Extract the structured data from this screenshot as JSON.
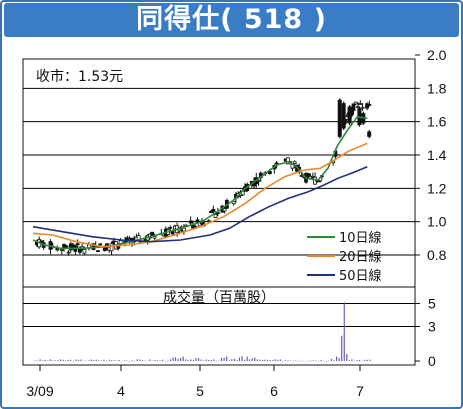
{
  "header": {
    "title": "同得仕( 518 )"
  },
  "price_panel": {
    "close_label": "收市：1.53元"
  },
  "volume_panel": {
    "title": "成交量（百萬股）"
  },
  "colors": {
    "frame": "#3a74b8",
    "title_bg": "#3a7dc4",
    "ma10": "#2e8b3a",
    "ma20": "#e8892a",
    "ma50": "#1f2f7a",
    "candle": "#111111",
    "volume": "#6b5bb5",
    "grid": "#000000"
  },
  "chart_data": [
    {
      "type": "candlestick",
      "title": "",
      "x_ticks": [
        "3/09",
        "4",
        "5",
        "6",
        "7"
      ],
      "y_ticks": [
        "2.0",
        "1.8",
        "1.6",
        "1.4",
        "1.2",
        "1.0",
        "0.8"
      ],
      "ylim": [
        0.7,
        2.0
      ],
      "grid": true,
      "legend_position": "bottom-right",
      "series": [
        {
          "name": "10日線",
          "key": "ma10",
          "points": [
            [
              0,
              0.89
            ],
            [
              6,
              0.86
            ],
            [
              14,
              0.84
            ],
            [
              25,
              0.84
            ],
            [
              38,
              0.85
            ],
            [
              50,
              0.88
            ],
            [
              63,
              0.92
            ],
            [
              75,
              0.96
            ],
            [
              86,
              1.0
            ],
            [
              95,
              1.07
            ],
            [
              102,
              1.13
            ],
            [
              108,
              1.2
            ],
            [
              116,
              1.27
            ],
            [
              124,
              1.34
            ],
            [
              130,
              1.36
            ],
            [
              134,
              1.33
            ],
            [
              139,
              1.26
            ],
            [
              145,
              1.25
            ],
            [
              150,
              1.32
            ],
            [
              155,
              1.46
            ],
            [
              160,
              1.55
            ],
            [
              165,
              1.63
            ],
            [
              170,
              1.62
            ]
          ]
        },
        {
          "name": "20日線",
          "key": "ma20",
          "points": [
            [
              0,
              0.93
            ],
            [
              10,
              0.92
            ],
            [
              22,
              0.88
            ],
            [
              35,
              0.85
            ],
            [
              48,
              0.86
            ],
            [
              60,
              0.88
            ],
            [
              72,
              0.92
            ],
            [
              85,
              0.97
            ],
            [
              97,
              1.03
            ],
            [
              108,
              1.11
            ],
            [
              118,
              1.2
            ],
            [
              128,
              1.27
            ],
            [
              138,
              1.31
            ],
            [
              146,
              1.32
            ],
            [
              152,
              1.36
            ],
            [
              160,
              1.42
            ],
            [
              170,
              1.47
            ]
          ]
        },
        {
          "name": "50日線",
          "key": "ma50",
          "points": [
            [
              0,
              0.97
            ],
            [
              15,
              0.94
            ],
            [
              30,
              0.91
            ],
            [
              45,
              0.89
            ],
            [
              60,
              0.88
            ],
            [
              75,
              0.89
            ],
            [
              90,
              0.92
            ],
            [
              100,
              0.96
            ],
            [
              110,
              1.03
            ],
            [
              120,
              1.09
            ],
            [
              130,
              1.14
            ],
            [
              140,
              1.18
            ],
            [
              148,
              1.22
            ],
            [
              155,
              1.26
            ],
            [
              162,
              1.29
            ],
            [
              170,
              1.33
            ]
          ]
        }
      ],
      "close_price": 1.53
    },
    {
      "type": "bar",
      "title": "成交量（百萬股）",
      "x_ticks": [
        "3/09",
        "4",
        "5",
        "6",
        "7"
      ],
      "y_ticks": [
        "5",
        "3",
        "0"
      ],
      "ylim": [
        0,
        6
      ],
      "grid": true
    }
  ]
}
